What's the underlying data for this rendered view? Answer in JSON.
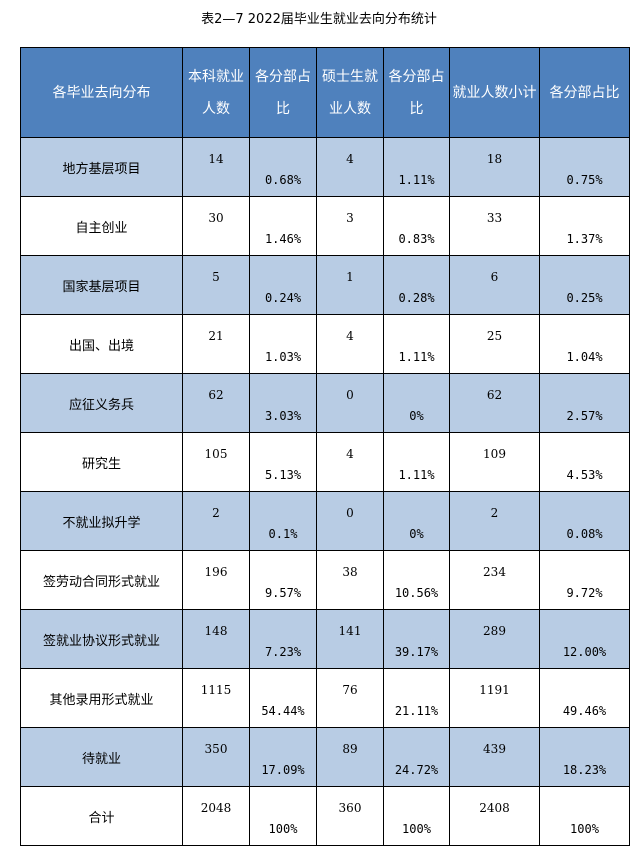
{
  "title": "表2—7  2022届毕业生就业去向分布统计",
  "headers": [
    "各毕业去向分布",
    "本科就业人数",
    "各分部占比",
    "硕士生就业人数",
    "各分部占比",
    "就业人数小计",
    "各分部占比"
  ],
  "colors": {
    "header": "#4f81bd",
    "alt_row": "#b8cce4"
  },
  "rows": [
    [
      "地方基层项目",
      "14",
      "0.68%",
      "4",
      "1.11%",
      "18",
      "0.75%"
    ],
    [
      "自主创业",
      "30",
      "1.46%",
      "3",
      "0.83%",
      "33",
      "1.37%"
    ],
    [
      "国家基层项目",
      "5",
      "0.24%",
      "1",
      "0.28%",
      "6",
      "0.25%"
    ],
    [
      "出国、出境",
      "21",
      "1.03%",
      "4",
      "1.11%",
      "25",
      "1.04%"
    ],
    [
      "应征义务兵",
      "62",
      "3.03%",
      "0",
      "0%",
      "62",
      "2.57%"
    ],
    [
      "研究生",
      "105",
      "5.13%",
      "4",
      "1.11%",
      "109",
      "4.53%"
    ],
    [
      "不就业拟升学",
      "2",
      "0.1%",
      "0",
      "0%",
      "2",
      "0.08%"
    ],
    [
      "签劳动合同形式就业",
      "196",
      "9.57%",
      "38",
      "10.56%",
      "234",
      "9.72%"
    ],
    [
      "签就业协议形式就业",
      "148",
      "7.23%",
      "141",
      "39.17%",
      "289",
      "12.00%"
    ],
    [
      "其他录用形式就业",
      "1115",
      "54.44%",
      "76",
      "21.11%",
      "1191",
      "49.46%"
    ],
    [
      "待就业",
      "350",
      "17.09%",
      "89",
      "24.72%",
      "439",
      "18.23%"
    ],
    [
      "合计",
      "2048",
      "100%",
      "360",
      "100%",
      "2408",
      "100%"
    ]
  ]
}
